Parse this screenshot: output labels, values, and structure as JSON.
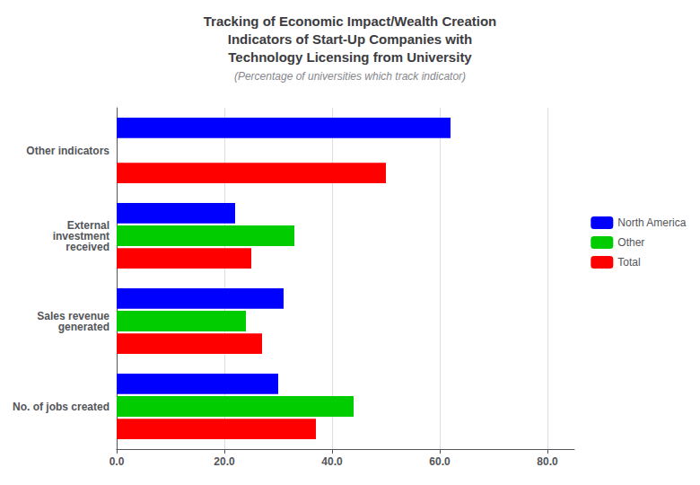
{
  "chart_data": {
    "type": "bar",
    "orientation": "horizontal",
    "title": "Tracking of Economic Impact/Wealth Creation\nIndicators of Start-Up Companies with\nTechnology Licensing from University",
    "subtitle": "(Percentage of universities which track indicator)",
    "categories": [
      "No. of jobs created",
      "Sales revenue\ngenerated",
      "External\ninvestment\nreceived",
      "Other indicators"
    ],
    "series": [
      {
        "name": "North America",
        "color": "#0000FF",
        "values": [
          30,
          31,
          22,
          62
        ]
      },
      {
        "name": "Other",
        "color": "#00CC00",
        "values": [
          44,
          24,
          33,
          0
        ]
      },
      {
        "name": "Total",
        "color": "#FF0000",
        "values": [
          37,
          27,
          25,
          50
        ]
      }
    ],
    "xlim": [
      0,
      85
    ],
    "xticks": [
      {
        "value": 0,
        "label": "0.0"
      },
      {
        "value": 20,
        "label": "20.0"
      },
      {
        "value": 40,
        "label": "40.0"
      },
      {
        "value": 60,
        "label": "60.0"
      },
      {
        "value": 80,
        "label": "80.0"
      }
    ],
    "grid": true,
    "legend": "right"
  }
}
